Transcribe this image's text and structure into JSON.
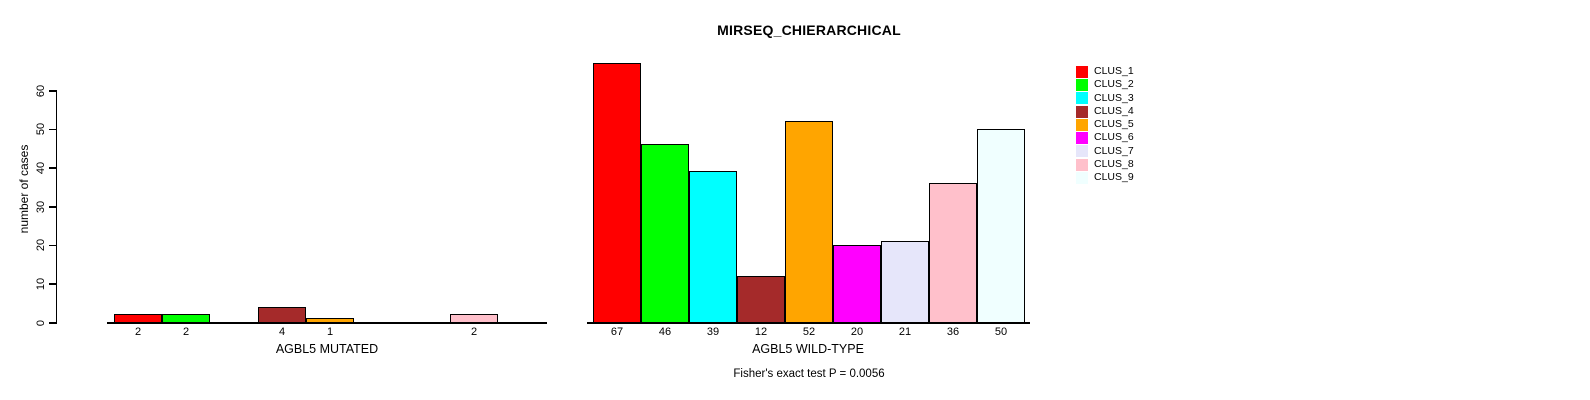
{
  "title": "MIRSEQ_CHIERARCHICAL",
  "chart_data": {
    "type": "bar",
    "title": "MIRSEQ_CHIERARCHICAL",
    "ylabel": "number of cases",
    "ylim": [
      0,
      60
    ],
    "yticks": [
      0,
      10,
      20,
      30,
      40,
      50,
      60
    ],
    "grid": false,
    "legend_position": "right",
    "categories": [
      "CLUS_1",
      "CLUS_2",
      "CLUS_3",
      "CLUS_4",
      "CLUS_5",
      "CLUS_6",
      "CLUS_7",
      "CLUS_8",
      "CLUS_9"
    ],
    "colors": [
      "#FF0000",
      "#00FF00",
      "#00FFFF",
      "#A52A2A",
      "#FFA500",
      "#FF00FF",
      "#E6E6FA",
      "#FFC0CB",
      "#F0FFFF"
    ],
    "series": [
      {
        "name": "AGBL5 MUTATED",
        "values": [
          2,
          2,
          0,
          4,
          1,
          0,
          0,
          2,
          0
        ]
      },
      {
        "name": "AGBL5 WILD-TYPE",
        "values": [
          67,
          46,
          39,
          12,
          52,
          20,
          21,
          36,
          50
        ]
      }
    ],
    "panel_xlabels": [
      "AGBL5 MUTATED",
      "AGBL5 WILD-TYPE"
    ],
    "annotation": "Fisher's exact test P = 0.0056"
  }
}
